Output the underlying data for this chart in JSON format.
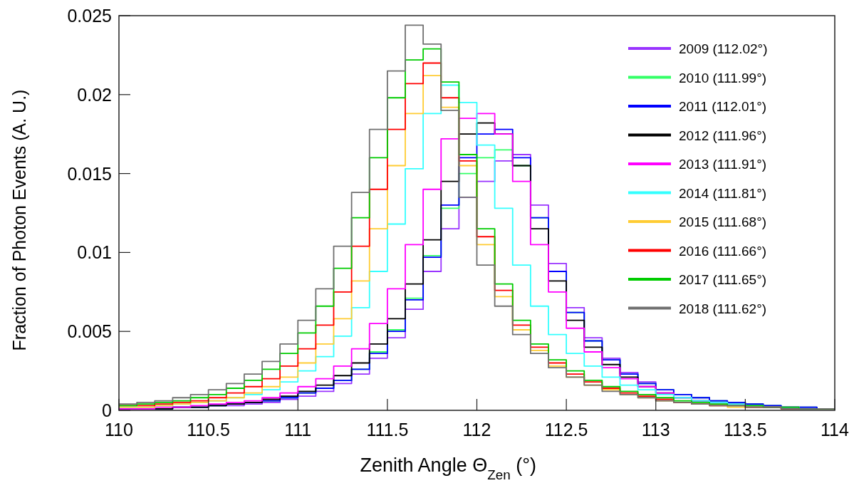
{
  "chart_data": {
    "type": "histogram",
    "xlabel": "Zenith Angle Θ$_{Zen}$ (°)",
    "ylabel": "Fraction of Photon Events (A. U.)",
    "bins": [
      110,
      110.1,
      110.2,
      110.3,
      110.4,
      110.5,
      110.6,
      110.7,
      110.8,
      110.9,
      111,
      111.1,
      111.2,
      111.3,
      111.4,
      111.5,
      111.6,
      111.7,
      111.8,
      111.9,
      112,
      112.1,
      112.2,
      112.3,
      112.4,
      112.5,
      112.6,
      112.7,
      112.8,
      112.9,
      113,
      113.1,
      113.2,
      113.3,
      113.4,
      113.5,
      113.6,
      113.7,
      113.8,
      113.9,
      114
    ],
    "xlim": [
      110,
      114
    ],
    "xticks": [
      110,
      110.5,
      111,
      111.5,
      112,
      112.5,
      113,
      113.5,
      114
    ],
    "ylim": [
      0,
      0.025
    ],
    "yticks": [
      0,
      0.005,
      0.01,
      0.015,
      0.02,
      0.025
    ],
    "grid": false,
    "legend": "top right",
    "series": [
      {
        "name": "2009 (112.02°)",
        "color": "#9933ff",
        "values": [
          0.0001,
          0.0001,
          0.0001,
          0.0002,
          0.0002,
          0.0003,
          0.0003,
          0.0004,
          0.0005,
          0.0007,
          0.0009,
          0.0012,
          0.0017,
          0.0023,
          0.0033,
          0.0046,
          0.0064,
          0.0088,
          0.0115,
          0.0135,
          0.0145,
          0.0158,
          0.0162,
          0.013,
          0.0093,
          0.0065,
          0.0046,
          0.0033,
          0.0024,
          0.0018,
          0.0013,
          0.001,
          0.0008,
          0.0006,
          0.0005,
          0.0004,
          0.0003,
          0.0002,
          0.0002,
          0.0001
        ]
      },
      {
        "name": "2010 (111.99°)",
        "color": "#33ff66",
        "values": [
          0.0001,
          0.0001,
          0.0001,
          0.0002,
          0.0002,
          0.0003,
          0.0004,
          0.0005,
          0.0006,
          0.0008,
          0.0011,
          0.0014,
          0.0019,
          0.0026,
          0.0037,
          0.0051,
          0.0071,
          0.0098,
          0.0128,
          0.015,
          0.016,
          0.0165,
          0.0155,
          0.0122,
          0.0088,
          0.0062,
          0.0044,
          0.0032,
          0.0023,
          0.0017,
          0.0013,
          0.001,
          0.0008,
          0.0006,
          0.0005,
          0.0004,
          0.0003,
          0.0002,
          0.0002,
          0.0001
        ]
      },
      {
        "name": "2011 (112.01°)",
        "color": "#0000ff",
        "values": [
          0.0001,
          0.0001,
          0.0001,
          0.0002,
          0.0002,
          0.0003,
          0.0004,
          0.0005,
          0.0006,
          0.0008,
          0.0011,
          0.0014,
          0.0019,
          0.0026,
          0.0036,
          0.005,
          0.007,
          0.0097,
          0.013,
          0.016,
          0.0175,
          0.0178,
          0.016,
          0.0122,
          0.0088,
          0.0062,
          0.0044,
          0.0032,
          0.0023,
          0.0017,
          0.0013,
          0.001,
          0.0008,
          0.0006,
          0.0005,
          0.0004,
          0.0003,
          0.0002,
          0.0002,
          0.0001
        ]
      },
      {
        "name": "2012 (111.96°)",
        "color": "#000000",
        "values": [
          0.0001,
          0.0001,
          0.0001,
          0.0002,
          0.0002,
          0.0003,
          0.0004,
          0.0005,
          0.0007,
          0.0009,
          0.0012,
          0.0016,
          0.0022,
          0.003,
          0.0042,
          0.0058,
          0.008,
          0.0108,
          0.0145,
          0.0175,
          0.0182,
          0.0175,
          0.0155,
          0.0115,
          0.0082,
          0.0057,
          0.004,
          0.0029,
          0.0021,
          0.0015,
          0.0011,
          0.0008,
          0.0006,
          0.0005,
          0.0004,
          0.0003,
          0.0002,
          0.0002,
          0.0001,
          0.0001
        ]
      },
      {
        "name": "2013 (111.91°)",
        "color": "#ff00ff",
        "values": [
          0.0001,
          0.0001,
          0.0002,
          0.0002,
          0.0003,
          0.0004,
          0.0005,
          0.0006,
          0.0008,
          0.0011,
          0.0015,
          0.002,
          0.0028,
          0.0039,
          0.0055,
          0.0077,
          0.0105,
          0.014,
          0.0172,
          0.0185,
          0.0188,
          0.0175,
          0.0145,
          0.0105,
          0.0075,
          0.0052,
          0.0037,
          0.0027,
          0.002,
          0.0015,
          0.0011,
          0.0008,
          0.0006,
          0.0005,
          0.0004,
          0.0003,
          0.0002,
          0.0002,
          0.0001,
          0.0001
        ]
      },
      {
        "name": "2014 (111.81°)",
        "color": "#33ffff",
        "values": [
          0.0002,
          0.0002,
          0.0003,
          0.0004,
          0.0005,
          0.0006,
          0.0008,
          0.001,
          0.0013,
          0.0018,
          0.0025,
          0.0034,
          0.0047,
          0.0065,
          0.0088,
          0.0118,
          0.0153,
          0.0188,
          0.0206,
          0.0195,
          0.0168,
          0.0128,
          0.0092,
          0.0066,
          0.0048,
          0.0036,
          0.0028,
          0.0021,
          0.0016,
          0.0013,
          0.001,
          0.0008,
          0.0006,
          0.0005,
          0.0004,
          0.0003,
          0.0002,
          0.0002,
          0.0001,
          0.0001
        ]
      },
      {
        "name": "2015 (111.68°)",
        "color": "#ffcc33",
        "values": [
          0.0002,
          0.0002,
          0.0003,
          0.0004,
          0.0005,
          0.0006,
          0.0008,
          0.0011,
          0.0015,
          0.0021,
          0.003,
          0.0042,
          0.0058,
          0.0082,
          0.0115,
          0.0155,
          0.0188,
          0.0212,
          0.0192,
          0.0155,
          0.0105,
          0.0072,
          0.0051,
          0.0038,
          0.0028,
          0.0021,
          0.0016,
          0.0013,
          0.001,
          0.0008,
          0.0006,
          0.0005,
          0.0004,
          0.0003,
          0.0002,
          0.0002,
          0.0002,
          0.0001,
          0.0001,
          0.0001
        ]
      },
      {
        "name": "2016 (111.66°)",
        "color": "#ff0000",
        "values": [
          0.0003,
          0.0003,
          0.0004,
          0.0005,
          0.0006,
          0.0008,
          0.0011,
          0.0015,
          0.002,
          0.0028,
          0.0039,
          0.0054,
          0.0075,
          0.0104,
          0.014,
          0.0178,
          0.0207,
          0.022,
          0.0198,
          0.0158,
          0.011,
          0.0076,
          0.0054,
          0.004,
          0.003,
          0.0023,
          0.0018,
          0.0014,
          0.0011,
          0.0009,
          0.0007,
          0.0005,
          0.0004,
          0.0003,
          0.0003,
          0.0002,
          0.0002,
          0.0001,
          0.0001,
          0.0001
        ]
      },
      {
        "name": "2017 (111.65°)",
        "color": "#00cc00",
        "values": [
          0.0003,
          0.0004,
          0.0005,
          0.0006,
          0.0008,
          0.001,
          0.0014,
          0.0019,
          0.0026,
          0.0036,
          0.0049,
          0.0066,
          0.009,
          0.0122,
          0.016,
          0.0198,
          0.0222,
          0.0229,
          0.0208,
          0.0162,
          0.0115,
          0.008,
          0.0057,
          0.0042,
          0.0032,
          0.0025,
          0.0019,
          0.0015,
          0.0012,
          0.001,
          0.0008,
          0.0006,
          0.0005,
          0.0004,
          0.0003,
          0.0003,
          0.0002,
          0.0002,
          0.0001,
          0.0001
        ]
      },
      {
        "name": "2018 (111.62°)",
        "color": "#707070",
        "values": [
          0.0004,
          0.0005,
          0.0006,
          0.0008,
          0.001,
          0.0013,
          0.0017,
          0.0023,
          0.0031,
          0.0042,
          0.0057,
          0.0077,
          0.0104,
          0.0138,
          0.0178,
          0.0215,
          0.0244,
          0.0232,
          0.019,
          0.0135,
          0.0092,
          0.0066,
          0.0048,
          0.0036,
          0.0027,
          0.0021,
          0.0016,
          0.0012,
          0.001,
          0.0008,
          0.0006,
          0.0005,
          0.0004,
          0.0003,
          0.0003,
          0.0002,
          0.0002,
          0.0001,
          0.0001,
          0.0001
        ]
      }
    ]
  }
}
